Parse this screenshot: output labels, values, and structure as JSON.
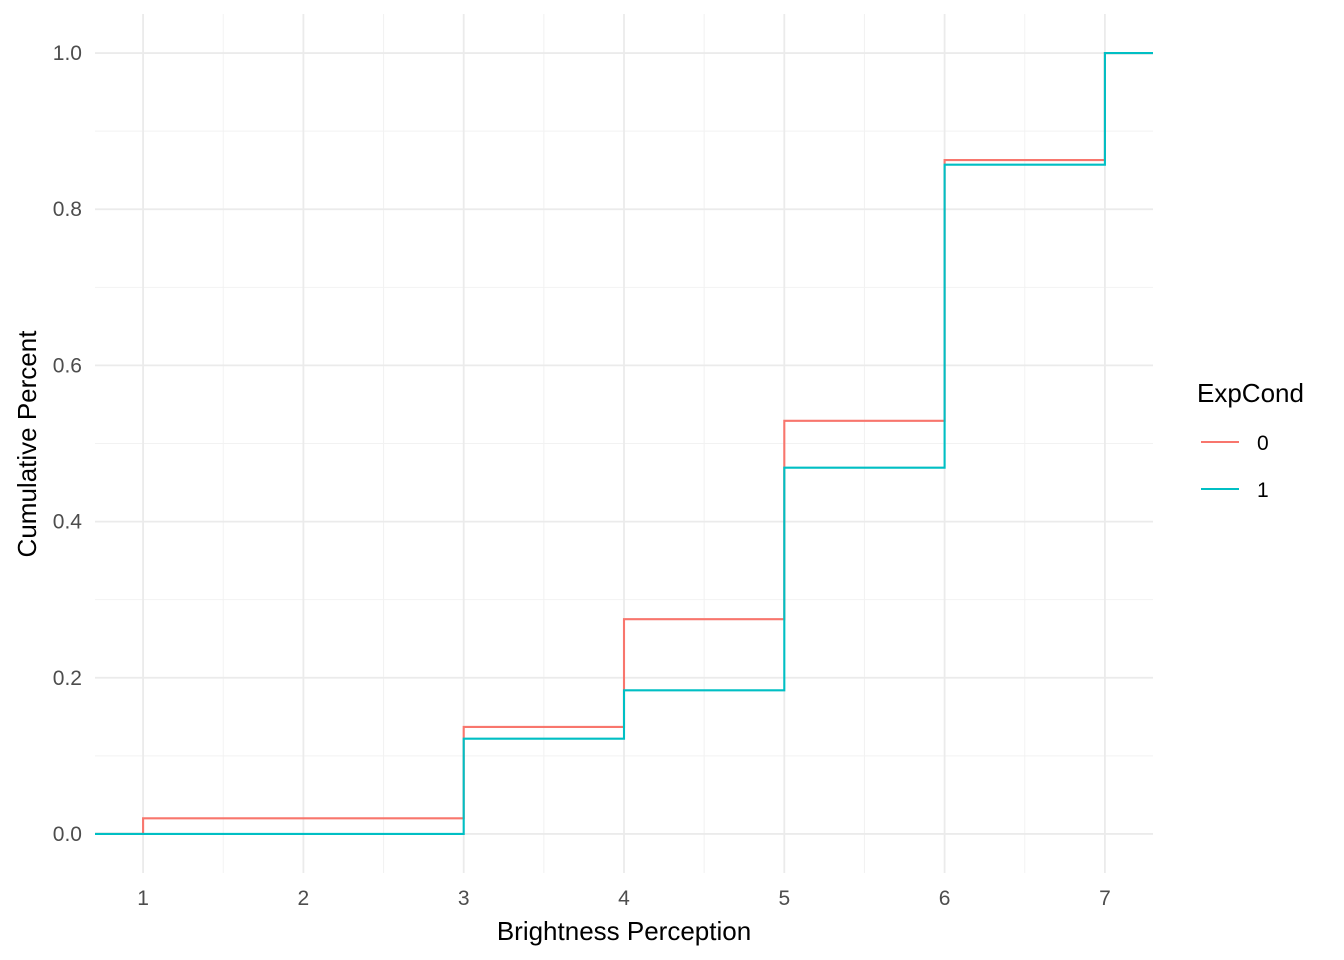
{
  "chart_data": {
    "type": "line",
    "step": true,
    "xlabel": "Brightness Perception",
    "ylabel": "Cumulative Percent",
    "xlim": [
      0.7,
      7.3
    ],
    "ylim": [
      -0.05,
      1.05
    ],
    "x_ticks": [
      1,
      2,
      3,
      4,
      5,
      6,
      7
    ],
    "x_tick_labels": [
      "1",
      "2",
      "3",
      "4",
      "5",
      "6",
      "7"
    ],
    "y_ticks": [
      0.0,
      0.2,
      0.4,
      0.6,
      0.8,
      1.0
    ],
    "y_tick_labels": [
      "0.0",
      "0.2",
      "0.4",
      "0.6",
      "0.8",
      "1.0"
    ],
    "grid": true,
    "legend_placement": "right",
    "legend_title": "ExpCond",
    "series": [
      {
        "name": "0",
        "color": "#F8766D",
        "x": [
          1,
          3,
          4,
          5,
          6,
          7
        ],
        "values": [
          0.02,
          0.137,
          0.275,
          0.529,
          0.863,
          1.0
        ]
      },
      {
        "name": "1",
        "color": "#00BFC4",
        "x": [
          3,
          4,
          5,
          6,
          7
        ],
        "values": [
          0.122,
          0.184,
          0.469,
          0.857,
          1.0
        ]
      }
    ]
  }
}
